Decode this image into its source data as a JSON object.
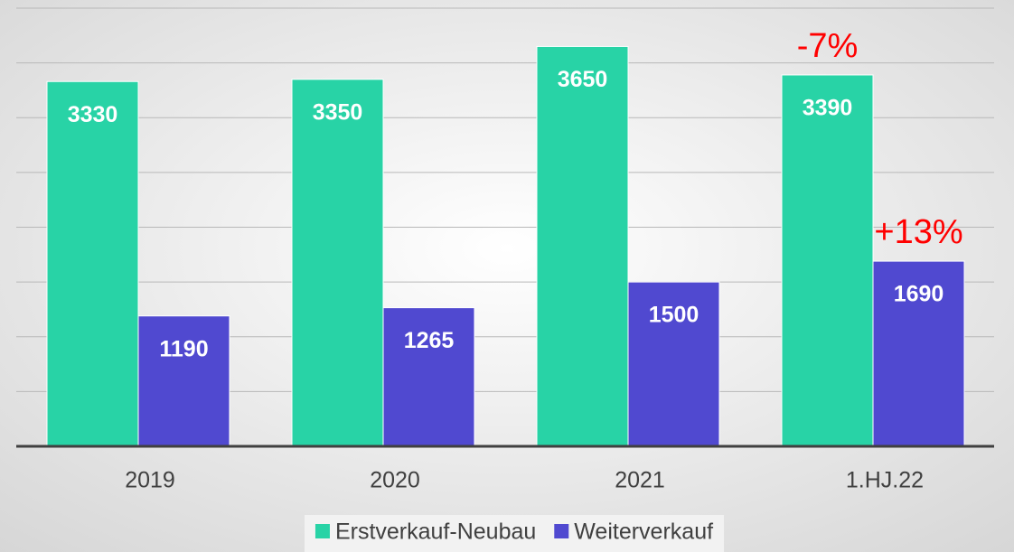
{
  "chart_data": {
    "type": "bar",
    "categories": [
      "2019",
      "2020",
      "2021",
      "1.HJ.22"
    ],
    "series": [
      {
        "name": "Erstverkauf-Neubau",
        "color": "#28d3a6",
        "values": [
          3330,
          3350,
          3650,
          3390
        ]
      },
      {
        "name": "Weiterverkauf",
        "color": "#5049d0",
        "values": [
          1190,
          1265,
          1500,
          1690
        ]
      }
    ],
    "annotations": [
      {
        "text": "-7%",
        "series": "Erstverkauf-Neubau",
        "category": "1.HJ.22"
      },
      {
        "text": "+13%",
        "series": "Weiterverkauf",
        "category": "1.HJ.22"
      }
    ],
    "annotation_color": "#ff0000",
    "ylim": [
      0,
      4000
    ],
    "yticks": [
      0,
      500,
      1000,
      1500,
      2000,
      2500,
      3000,
      3500,
      4000
    ],
    "grid": true,
    "legend": "bottom"
  }
}
